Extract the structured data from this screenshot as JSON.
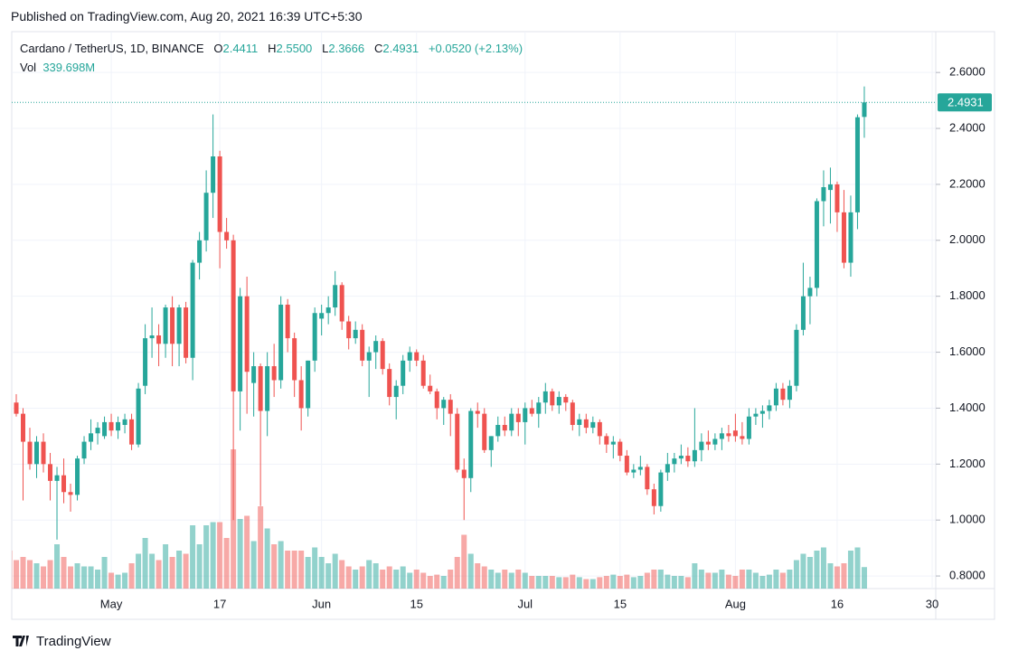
{
  "published": "Published on TradingView.com, Aug 20, 2021 16:39 UTC+5:30",
  "brand": "TradingView",
  "chart_data": {
    "type": "candlestick",
    "title": "Cardano / TetherUS, 1D, BINANCE",
    "ohlc_keys": [
      "O",
      "H",
      "L",
      "C"
    ],
    "last_labels": {
      "open": "2.4411",
      "high": "2.5500",
      "low": "2.3666",
      "close": "2.4931",
      "change": "+0.0520 (+2.13%)"
    },
    "volume_label": "Vol",
    "volume_last_label": "339.698M",
    "up_color": "#26a69a",
    "down_color": "#ef5350",
    "grid": true,
    "x": [
      "2021-04-16",
      "2021-04-17",
      "2021-04-18",
      "2021-04-19",
      "2021-04-20",
      "2021-04-21",
      "2021-04-22",
      "2021-04-23",
      "2021-04-24",
      "2021-04-25",
      "2021-04-26",
      "2021-04-27",
      "2021-04-28",
      "2021-04-29",
      "2021-04-30",
      "2021-05-01",
      "2021-05-02",
      "2021-05-03",
      "2021-05-04",
      "2021-05-05",
      "2021-05-06",
      "2021-05-07",
      "2021-05-08",
      "2021-05-09",
      "2021-05-10",
      "2021-05-11",
      "2021-05-12",
      "2021-05-13",
      "2021-05-14",
      "2021-05-15",
      "2021-05-16",
      "2021-05-17",
      "2021-05-18",
      "2021-05-19",
      "2021-05-20",
      "2021-05-21",
      "2021-05-22",
      "2021-05-23",
      "2021-05-24",
      "2021-05-25",
      "2021-05-26",
      "2021-05-27",
      "2021-05-28",
      "2021-05-29",
      "2021-05-30",
      "2021-05-31",
      "2021-06-01",
      "2021-06-02",
      "2021-06-03",
      "2021-06-04",
      "2021-06-05",
      "2021-06-06",
      "2021-06-07",
      "2021-06-08",
      "2021-06-09",
      "2021-06-10",
      "2021-06-11",
      "2021-06-12",
      "2021-06-13",
      "2021-06-14",
      "2021-06-15",
      "2021-06-16",
      "2021-06-17",
      "2021-06-18",
      "2021-06-19",
      "2021-06-20",
      "2021-06-21",
      "2021-06-22",
      "2021-06-23",
      "2021-06-24",
      "2021-06-25",
      "2021-06-26",
      "2021-06-27",
      "2021-06-28",
      "2021-06-29",
      "2021-06-30",
      "2021-07-01",
      "2021-07-02",
      "2021-07-03",
      "2021-07-04",
      "2021-07-05",
      "2021-07-06",
      "2021-07-07",
      "2021-07-08",
      "2021-07-09",
      "2021-07-10",
      "2021-07-11",
      "2021-07-12",
      "2021-07-13",
      "2021-07-14",
      "2021-07-15",
      "2021-07-16",
      "2021-07-17",
      "2021-07-18",
      "2021-07-19",
      "2021-07-20",
      "2021-07-21",
      "2021-07-22",
      "2021-07-23",
      "2021-07-24",
      "2021-07-25",
      "2021-07-26",
      "2021-07-27",
      "2021-07-28",
      "2021-07-29",
      "2021-07-30",
      "2021-07-31",
      "2021-08-01",
      "2021-08-02",
      "2021-08-03",
      "2021-08-04",
      "2021-08-05",
      "2021-08-06",
      "2021-08-07",
      "2021-08-08",
      "2021-08-09",
      "2021-08-10",
      "2021-08-11",
      "2021-08-12",
      "2021-08-13",
      "2021-08-14",
      "2021-08-15",
      "2021-08-16",
      "2021-08-17",
      "2021-08-18",
      "2021-08-19",
      "2021-08-20"
    ],
    "open": [
      1.49,
      1.42,
      1.38,
      1.28,
      1.2,
      1.28,
      1.2,
      1.14,
      1.16,
      1.1,
      1.09,
      1.22,
      1.28,
      1.31,
      1.3,
      1.35,
      1.32,
      1.34,
      1.36,
      1.27,
      1.48,
      1.65,
      1.66,
      1.63,
      1.76,
      1.63,
      1.76,
      1.58,
      1.92,
      2.0,
      2.17,
      2.3,
      2.03,
      2.0,
      1.46,
      1.8,
      1.49,
      1.55,
      1.39,
      1.55,
      1.5,
      1.77,
      1.65,
      1.5,
      1.4,
      1.57,
      1.72,
      1.74,
      1.76,
      1.84,
      1.71,
      1.65,
      1.68,
      1.57,
      1.6,
      1.64,
      1.54,
      1.44,
      1.48,
      1.57,
      1.6,
      1.57,
      1.48,
      1.46,
      1.4,
      1.43,
      1.38,
      1.18,
      1.15,
      1.39,
      1.38,
      1.25,
      1.3,
      1.34,
      1.32,
      1.38,
      1.35,
      1.4,
      1.38,
      1.42,
      1.46,
      1.41,
      1.44,
      1.42,
      1.34,
      1.36,
      1.33,
      1.35,
      1.3,
      1.27,
      1.28,
      1.23,
      1.17,
      1.18,
      1.19,
      1.11,
      1.05,
      1.17,
      1.2,
      1.22,
      1.23,
      1.21,
      1.25,
      1.28,
      1.27,
      1.29,
      1.31,
      1.32,
      1.3,
      1.29,
      1.37,
      1.38,
      1.39,
      1.41,
      1.47,
      1.43,
      1.48,
      1.68,
      1.8,
      1.83,
      2.14,
      2.18,
      2.2,
      2.1,
      1.92,
      2.1,
      2.4411
    ],
    "high": [
      1.5,
      1.45,
      1.4,
      1.33,
      1.3,
      1.31,
      1.24,
      1.19,
      1.22,
      1.13,
      1.23,
      1.3,
      1.36,
      1.35,
      1.37,
      1.38,
      1.37,
      1.38,
      1.38,
      1.49,
      1.7,
      1.76,
      1.7,
      1.77,
      1.8,
      1.77,
      1.78,
      1.93,
      2.03,
      2.25,
      2.45,
      2.32,
      2.08,
      2.02,
      1.83,
      1.87,
      1.6,
      1.56,
      1.6,
      1.63,
      1.8,
      1.79,
      1.67,
      1.55,
      1.57,
      1.76,
      1.77,
      1.8,
      1.89,
      1.85,
      1.73,
      1.71,
      1.7,
      1.62,
      1.66,
      1.65,
      1.56,
      1.5,
      1.59,
      1.62,
      1.61,
      1.59,
      1.52,
      1.47,
      1.44,
      1.45,
      1.4,
      1.22,
      1.4,
      1.42,
      1.4,
      1.3,
      1.37,
      1.37,
      1.4,
      1.4,
      1.42,
      1.43,
      1.44,
      1.49,
      1.47,
      1.46,
      1.45,
      1.43,
      1.38,
      1.38,
      1.37,
      1.36,
      1.31,
      1.3,
      1.29,
      1.25,
      1.2,
      1.23,
      1.2,
      1.13,
      1.18,
      1.24,
      1.24,
      1.27,
      1.26,
      1.4,
      1.31,
      1.32,
      1.31,
      1.33,
      1.34,
      1.38,
      1.35,
      1.4,
      1.4,
      1.41,
      1.43,
      1.49,
      1.49,
      1.5,
      1.7,
      1.92,
      1.87,
      2.15,
      2.25,
      2.26,
      2.21,
      2.18,
      2.16,
      2.45,
      2.55
    ],
    "low": [
      1.4,
      1.37,
      1.07,
      1.18,
      1.15,
      1.17,
      1.07,
      0.93,
      1.06,
      1.03,
      1.07,
      1.2,
      1.25,
      1.27,
      1.29,
      1.3,
      1.29,
      1.31,
      1.25,
      1.26,
      1.45,
      1.58,
      1.55,
      1.58,
      1.55,
      1.55,
      1.56,
      1.5,
      1.86,
      1.96,
      2.08,
      1.9,
      1.97,
      1.0,
      1.32,
      1.38,
      1.37,
      1.05,
      1.3,
      1.44,
      1.47,
      1.6,
      1.44,
      1.32,
      1.37,
      1.53,
      1.66,
      1.7,
      1.73,
      1.68,
      1.61,
      1.63,
      1.55,
      1.44,
      1.54,
      1.52,
      1.41,
      1.36,
      1.45,
      1.53,
      1.55,
      1.47,
      1.45,
      1.36,
      1.34,
      1.3,
      1.17,
      1.0,
      1.1,
      1.33,
      1.24,
      1.19,
      1.28,
      1.3,
      1.3,
      1.3,
      1.27,
      1.37,
      1.33,
      1.38,
      1.39,
      1.38,
      1.39,
      1.32,
      1.3,
      1.31,
      1.31,
      1.27,
      1.24,
      1.22,
      1.21,
      1.16,
      1.15,
      1.16,
      1.09,
      1.02,
      1.03,
      1.14,
      1.17,
      1.2,
      1.19,
      1.19,
      1.21,
      1.25,
      1.25,
      1.25,
      1.28,
      1.28,
      1.27,
      1.27,
      1.34,
      1.33,
      1.36,
      1.39,
      1.41,
      1.4,
      1.46,
      1.66,
      1.7,
      1.8,
      2.05,
      2.06,
      2.03,
      1.9,
      1.87,
      2.04,
      2.3666
    ],
    "close": [
      1.41,
      1.38,
      1.28,
      1.2,
      1.28,
      1.2,
      1.14,
      1.16,
      1.1,
      1.09,
      1.22,
      1.28,
      1.31,
      1.33,
      1.35,
      1.32,
      1.35,
      1.36,
      1.27,
      1.47,
      1.65,
      1.66,
      1.63,
      1.76,
      1.63,
      1.76,
      1.58,
      1.92,
      2.0,
      2.17,
      2.3,
      2.03,
      2.0,
      1.46,
      1.8,
      1.53,
      1.55,
      1.39,
      1.55,
      1.5,
      1.77,
      1.65,
      1.5,
      1.4,
      1.57,
      1.74,
      1.74,
      1.76,
      1.84,
      1.71,
      1.65,
      1.68,
      1.57,
      1.6,
      1.64,
      1.54,
      1.44,
      1.48,
      1.57,
      1.6,
      1.57,
      1.48,
      1.46,
      1.4,
      1.43,
      1.38,
      1.18,
      1.15,
      1.39,
      1.38,
      1.25,
      1.3,
      1.34,
      1.32,
      1.38,
      1.35,
      1.4,
      1.38,
      1.42,
      1.46,
      1.41,
      1.44,
      1.42,
      1.34,
      1.36,
      1.33,
      1.35,
      1.3,
      1.27,
      1.28,
      1.23,
      1.17,
      1.18,
      1.19,
      1.11,
      1.05,
      1.17,
      1.2,
      1.22,
      1.23,
      1.21,
      1.25,
      1.28,
      1.27,
      1.29,
      1.31,
      1.3,
      1.3,
      1.29,
      1.37,
      1.38,
      1.39,
      1.41,
      1.47,
      1.43,
      1.48,
      1.68,
      1.8,
      1.83,
      2.14,
      2.19,
      2.2,
      2.1,
      1.92,
      2.1,
      2.44,
      2.4931
    ],
    "volume": [
      600,
      450,
      500,
      450,
      400,
      350,
      450,
      700,
      500,
      350,
      400,
      350,
      350,
      300,
      500,
      250,
      220,
      250,
      400,
      550,
      800,
      550,
      450,
      700,
      500,
      600,
      550,
      1000,
      700,
      1000,
      1050,
      1050,
      800,
      2200,
      1100,
      1150,
      750,
      1300,
      950,
      700,
      750,
      600,
      600,
      600,
      500,
      650,
      500,
      400,
      550,
      450,
      350,
      300,
      350,
      450,
      400,
      300,
      350,
      300,
      350,
      250,
      300,
      250,
      200,
      220,
      200,
      300,
      500,
      850,
      550,
      400,
      350,
      300,
      250,
      300,
      250,
      300,
      250,
      200,
      200,
      200,
      200,
      180,
      180,
      220,
      180,
      150,
      150,
      180,
      200,
      220,
      200,
      220,
      180,
      200,
      250,
      300,
      300,
      220,
      200,
      200,
      180,
      400,
      300,
      250,
      250,
      300,
      220,
      200,
      300,
      300,
      250,
      200,
      220,
      300,
      250,
      300,
      450,
      550,
      500,
      600,
      650,
      400,
      350,
      400,
      600,
      650,
      339.698
    ],
    "xlim": [
      "2021-04-16",
      "2021-08-30"
    ],
    "xticks": [
      {
        "value": "2021-05-01",
        "label": "May"
      },
      {
        "value": "2021-05-17",
        "label": "17"
      },
      {
        "value": "2021-06-01",
        "label": "Jun"
      },
      {
        "value": "2021-06-15",
        "label": "15"
      },
      {
        "value": "2021-07-01",
        "label": "Jul"
      },
      {
        "value": "2021-07-15",
        "label": "15"
      },
      {
        "value": "2021-08-01",
        "label": "Aug"
      },
      {
        "value": "2021-08-16",
        "label": "16"
      },
      {
        "value": "2021-08-30",
        "label": "30"
      }
    ],
    "ylim": [
      0.755,
      2.746
    ],
    "yticks": [
      {
        "value": 0.8,
        "label": "0.8000"
      },
      {
        "value": 1.0,
        "label": "1.0000"
      },
      {
        "value": 1.2,
        "label": "1.2000"
      },
      {
        "value": 1.4,
        "label": "1.4000"
      },
      {
        "value": 1.6,
        "label": "1.6000"
      },
      {
        "value": 1.8,
        "label": "1.8000"
      },
      {
        "value": 2.0,
        "label": "2.0000"
      },
      {
        "value": 2.2,
        "label": "2.2000"
      },
      {
        "value": 2.4,
        "label": "2.4000"
      },
      {
        "value": 2.6,
        "label": "2.6000"
      }
    ]
  }
}
